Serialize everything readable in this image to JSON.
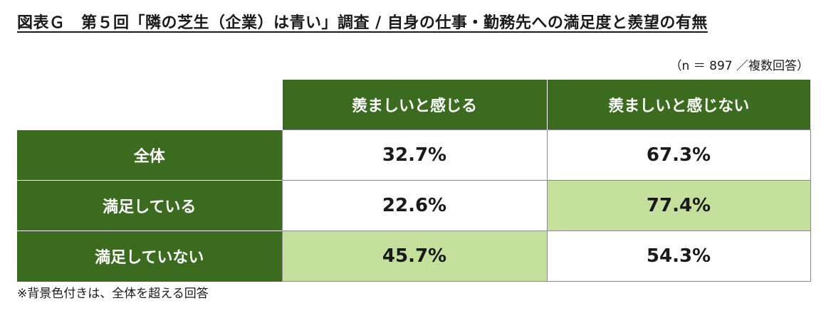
{
  "title": "図表Ｇ　第５回「隣の芝生（企業）は青い」調査 / 自身の仕事・勤務先への満足度と羨望の有無",
  "sample_note": "（n ＝ 897 ／複数回答）",
  "footnote": "※背景色付きは、全体を超える回答",
  "colors": {
    "header_bg": "#3a6b1e",
    "highlight_bg": "#c5df9c"
  },
  "chart_data": {
    "type": "table",
    "columns": [
      "羨ましいと感じる",
      "羨ましいと感じない"
    ],
    "rows": [
      {
        "label": "全体",
        "values": [
          "32.7%",
          "67.3%"
        ],
        "highlight": [
          false,
          false
        ]
      },
      {
        "label": "満足している",
        "values": [
          "22.6%",
          "77.4%"
        ],
        "highlight": [
          false,
          true
        ]
      },
      {
        "label": "満足していない",
        "values": [
          "45.7%",
          "54.3%"
        ],
        "highlight": [
          true,
          false
        ]
      }
    ]
  }
}
